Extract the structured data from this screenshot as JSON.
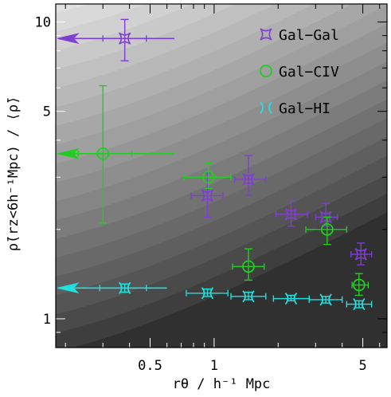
{
  "chart_data": {
    "type": "scatter",
    "xlabel": "rθ / h⁻¹ Mpc",
    "ylabel": "ρ̄(rz<6h⁻¹Mpc) / ⟨ρ̄⟩",
    "xscale": "log",
    "yscale": "log",
    "xlim": [
      0.18,
      6.5
    ],
    "ylim": [
      0.8,
      11.5
    ],
    "xticks": [
      {
        "value": 0.5,
        "label": "0.5"
      },
      {
        "value": 1,
        "label": "1"
      },
      {
        "value": 5,
        "label": "5"
      }
    ],
    "yticks": [
      {
        "value": 1,
        "label": "1"
      },
      {
        "value": 5,
        "label": "5"
      },
      {
        "value": 10,
        "label": "10"
      }
    ],
    "legend_position": "top-right",
    "background": "grayscale gradient contours",
    "series": [
      {
        "name": "Gal−Gal",
        "color": "#7f3fd0",
        "marker": "four-point-star",
        "limit": {
          "y": 8.8,
          "x_from": 0.65,
          "direction": "left"
        },
        "points": [
          {
            "x": 0.38,
            "y": 8.8,
            "xerr": [
              0.3,
              0.48
            ],
            "yerr": [
              7.4,
              10.2
            ]
          },
          {
            "x": 0.93,
            "y": 2.6,
            "xerr": [
              0.78,
              1.1
            ],
            "yerr": [
              2.2,
              3.1
            ]
          },
          {
            "x": 1.45,
            "y": 2.95,
            "xerr": [
              1.25,
              1.75
            ],
            "yerr": [
              2.6,
              3.55
            ]
          },
          {
            "x": 2.3,
            "y": 2.25,
            "xerr": [
              1.95,
              2.75
            ],
            "yerr": [
              2.05,
              2.5
            ]
          },
          {
            "x": 3.35,
            "y": 2.2,
            "xerr": [
              3.0,
              3.8
            ],
            "yerr": [
              2.05,
              2.45
            ]
          },
          {
            "x": 4.9,
            "y": 1.65,
            "xerr": [
              4.4,
              5.5
            ],
            "yerr": [
              1.52,
              1.8
            ]
          }
        ]
      },
      {
        "name": "Gal−CIV",
        "color": "#22cc22",
        "marker": "circle",
        "limit": {
          "y": 3.6,
          "x_from": 0.65,
          "direction": "left"
        },
        "points": [
          {
            "x": 0.3,
            "y": 3.6,
            "xerr": [
              0.23,
              0.41
            ],
            "yerr": [
              2.1,
              6.1
            ]
          },
          {
            "x": 0.94,
            "y": 3.0,
            "xerr": [
              0.72,
              1.2
            ],
            "yerr": [
              2.75,
              3.35
            ]
          },
          {
            "x": 1.45,
            "y": 1.5,
            "xerr": [
              1.22,
              1.72
            ],
            "yerr": [
              1.35,
              1.72
            ]
          },
          {
            "x": 3.4,
            "y": 2.0,
            "xerr": [
              2.7,
              4.2
            ],
            "yerr": [
              1.78,
              2.2
            ]
          },
          {
            "x": 4.8,
            "y": 1.3,
            "xerr": [
              4.45,
              5.3
            ],
            "yerr": [
              1.2,
              1.42
            ]
          }
        ]
      },
      {
        "name": "Gal−HI",
        "color": "#20e0e0",
        "marker": "hourglass",
        "limit": {
          "y": 1.27,
          "x_from": 0.6,
          "direction": "left"
        },
        "points": [
          {
            "x": 0.38,
            "y": 1.27,
            "xerr": [
              0.29,
              0.48
            ],
            "yerr": [
              1.23,
              1.31
            ]
          },
          {
            "x": 0.93,
            "y": 1.22,
            "xerr": [
              0.74,
              1.16
            ],
            "yerr": [
              1.19,
              1.26
            ]
          },
          {
            "x": 1.45,
            "y": 1.19,
            "xerr": [
              1.2,
              1.75
            ],
            "yerr": [
              1.16,
              1.23
            ]
          },
          {
            "x": 2.3,
            "y": 1.17,
            "xerr": [
              1.9,
              2.8
            ],
            "yerr": [
              1.15,
              1.2
            ]
          },
          {
            "x": 3.35,
            "y": 1.16,
            "xerr": [
              2.8,
              4.0
            ],
            "yerr": [
              1.13,
              1.19
            ]
          },
          {
            "x": 4.8,
            "y": 1.12,
            "xerr": [
              4.2,
              5.5
            ],
            "yerr": [
              1.09,
              1.15
            ]
          }
        ]
      }
    ]
  }
}
